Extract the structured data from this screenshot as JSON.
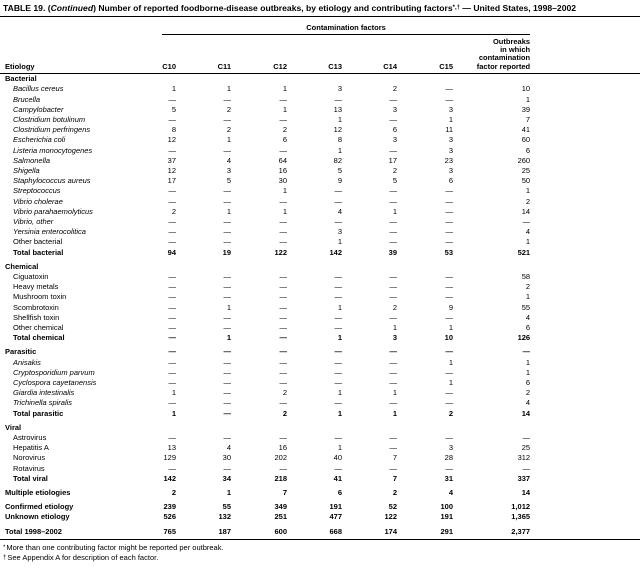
{
  "title": {
    "part1": "TABLE 19. (",
    "continued": "Continued",
    "part2": ") Number of reported foodborne-disease outbreaks, by etiology and contributing factors",
    "superscript": "*,†",
    "part3": " — United States, 1998–2002"
  },
  "columns": {
    "group_header": "Contamination factors",
    "etiology": "Etiology",
    "factors": [
      "C10",
      "C11",
      "C12",
      "C13",
      "C14",
      "C15"
    ],
    "outbreaks_header": "Outbreaks\nin which\ncontamination\nfactor reported"
  },
  "sections": [
    {
      "name": "Bacterial",
      "name_values": null,
      "rows": [
        {
          "label": "Bacillus cereus",
          "italic": true,
          "bold": false,
          "values": [
            "1",
            "1",
            "1",
            "3",
            "2",
            "—",
            "10"
          ]
        },
        {
          "label": "Brucella",
          "italic": true,
          "bold": false,
          "values": [
            "—",
            "—",
            "—",
            "—",
            "—",
            "—",
            "1"
          ]
        },
        {
          "label": "Campylobacter",
          "italic": true,
          "bold": false,
          "values": [
            "5",
            "2",
            "1",
            "13",
            "3",
            "3",
            "39"
          ]
        },
        {
          "label": "Clostridium botulinum",
          "italic": true,
          "bold": false,
          "values": [
            "—",
            "—",
            "—",
            "1",
            "—",
            "1",
            "7"
          ]
        },
        {
          "label": "Clostridium perfringens",
          "italic": true,
          "bold": false,
          "values": [
            "8",
            "2",
            "2",
            "12",
            "6",
            "11",
            "41"
          ]
        },
        {
          "label": "Escherichia coli",
          "italic": true,
          "bold": false,
          "values": [
            "12",
            "1",
            "6",
            "8",
            "3",
            "3",
            "60"
          ]
        },
        {
          "label": "Listeria monocytogenes",
          "italic": true,
          "bold": false,
          "values": [
            "—",
            "—",
            "—",
            "1",
            "—",
            "3",
            "6"
          ]
        },
        {
          "label": "Salmonella",
          "italic": true,
          "bold": false,
          "values": [
            "37",
            "4",
            "64",
            "82",
            "17",
            "23",
            "260"
          ]
        },
        {
          "label": "Shigella",
          "italic": true,
          "bold": false,
          "values": [
            "12",
            "3",
            "16",
            "5",
            "2",
            "3",
            "25"
          ]
        },
        {
          "label": "Staphylococcus aureus",
          "italic": true,
          "bold": false,
          "values": [
            "17",
            "5",
            "30",
            "9",
            "5",
            "6",
            "50"
          ]
        },
        {
          "label": "Streptococcus",
          "italic": true,
          "bold": false,
          "values": [
            "—",
            "—",
            "1",
            "—",
            "—",
            "—",
            "1"
          ]
        },
        {
          "label": "Vibrio cholerae",
          "italic": true,
          "bold": false,
          "values": [
            "—",
            "—",
            "—",
            "—",
            "—",
            "—",
            "2"
          ]
        },
        {
          "label": "Vibrio parahaemolyticus",
          "italic": true,
          "bold": false,
          "values": [
            "2",
            "1",
            "1",
            "4",
            "1",
            "—",
            "14"
          ]
        },
        {
          "label": "Vibrio, other",
          "italic": true,
          "bold": false,
          "values": [
            "—",
            "—",
            "—",
            "—",
            "—",
            "—",
            "—"
          ]
        },
        {
          "label": "Yersinia enterocolitica",
          "italic": true,
          "bold": false,
          "values": [
            "—",
            "—",
            "—",
            "3",
            "—",
            "—",
            "4"
          ]
        },
        {
          "label": "Other bacterial",
          "italic": false,
          "bold": false,
          "values": [
            "—",
            "—",
            "—",
            "1",
            "—",
            "—",
            "1"
          ]
        },
        {
          "label": "Total bacterial",
          "italic": false,
          "bold": true,
          "values": [
            "94",
            "19",
            "122",
            "142",
            "39",
            "53",
            "521"
          ]
        }
      ]
    },
    {
      "name": "Chemical",
      "name_values": null,
      "rows": [
        {
          "label": "Ciguatoxin",
          "italic": false,
          "bold": false,
          "values": [
            "—",
            "—",
            "—",
            "—",
            "—",
            "—",
            "58"
          ]
        },
        {
          "label": "Heavy metals",
          "italic": false,
          "bold": false,
          "values": [
            "—",
            "—",
            "—",
            "—",
            "—",
            "—",
            "2"
          ]
        },
        {
          "label": "Mushroom toxin",
          "italic": false,
          "bold": false,
          "values": [
            "—",
            "—",
            "—",
            "—",
            "—",
            "—",
            "1"
          ]
        },
        {
          "label": "Scombrotoxin",
          "italic": false,
          "bold": false,
          "values": [
            "—",
            "1",
            "—",
            "1",
            "2",
            "9",
            "55"
          ]
        },
        {
          "label": "Shellfish toxin",
          "italic": false,
          "bold": false,
          "values": [
            "—",
            "—",
            "—",
            "—",
            "—",
            "—",
            "4"
          ]
        },
        {
          "label": "Other chemical",
          "italic": false,
          "bold": false,
          "values": [
            "—",
            "—",
            "—",
            "—",
            "1",
            "1",
            "6"
          ]
        },
        {
          "label": "Total chemical",
          "italic": false,
          "bold": true,
          "values": [
            "—",
            "1",
            "—",
            "1",
            "3",
            "10",
            "126"
          ]
        }
      ]
    },
    {
      "name": "Parasitic",
      "name_values": [
        "—",
        "—",
        "—",
        "—",
        "—",
        "—",
        "—"
      ],
      "rows": [
        {
          "label": "Anisakis",
          "italic": true,
          "bold": false,
          "values": [
            "—",
            "—",
            "—",
            "—",
            "—",
            "1",
            "1"
          ]
        },
        {
          "label": "Cryptosporidium parvum",
          "italic": true,
          "bold": false,
          "values": [
            "—",
            "—",
            "—",
            "—",
            "—",
            "—",
            "1"
          ]
        },
        {
          "label": "Cyclospora cayetanensis",
          "italic": true,
          "bold": false,
          "values": [
            "—",
            "—",
            "—",
            "—",
            "—",
            "1",
            "6"
          ]
        },
        {
          "label": "Giardia intestinalis",
          "italic": true,
          "bold": false,
          "values": [
            "1",
            "—",
            "2",
            "1",
            "1",
            "—",
            "2"
          ]
        },
        {
          "label": "Trichinella spiralis",
          "italic": true,
          "bold": false,
          "values": [
            "—",
            "—",
            "—",
            "—",
            "—",
            "—",
            "4"
          ]
        },
        {
          "label": "Total parasitic",
          "italic": false,
          "bold": true,
          "values": [
            "1",
            "—",
            "2",
            "1",
            "1",
            "2",
            "14"
          ]
        }
      ]
    },
    {
      "name": "Viral",
      "name_values": null,
      "rows": [
        {
          "label": "Astrovirus",
          "italic": false,
          "bold": false,
          "values": [
            "—",
            "—",
            "—",
            "—",
            "—",
            "—",
            "—"
          ]
        },
        {
          "label": "Hepatitis A",
          "italic": false,
          "bold": false,
          "values": [
            "13",
            "4",
            "16",
            "1",
            "—",
            "3",
            "25"
          ]
        },
        {
          "label": "Norovirus",
          "italic": false,
          "bold": false,
          "values": [
            "129",
            "30",
            "202",
            "40",
            "7",
            "28",
            "312"
          ]
        },
        {
          "label": "Rotavirus",
          "italic": false,
          "bold": false,
          "values": [
            "—",
            "—",
            "—",
            "—",
            "—",
            "—",
            "—"
          ]
        },
        {
          "label": "Total viral",
          "italic": false,
          "bold": true,
          "values": [
            "142",
            "34",
            "218",
            "41",
            "7",
            "31",
            "337"
          ]
        }
      ]
    }
  ],
  "summary": [
    {
      "label": "Multiple etiologies",
      "group": "multiple",
      "values": [
        "2",
        "1",
        "7",
        "6",
        "2",
        "4",
        "14"
      ]
    },
    {
      "label": "Confirmed etiology",
      "group": "confirmed",
      "values": [
        "239",
        "55",
        "349",
        "191",
        "52",
        "100",
        "1,012"
      ]
    },
    {
      "label": "Unknown etiology",
      "group": "confirmed",
      "values": [
        "526",
        "132",
        "251",
        "477",
        "122",
        "191",
        "1,365"
      ]
    },
    {
      "label": "Total 1998–2002",
      "group": "total",
      "values": [
        "765",
        "187",
        "600",
        "668",
        "174",
        "291",
        "2,377"
      ]
    }
  ],
  "footnotes": [
    {
      "marker": "*",
      "text": "More than one contributing factor might be reported per outbreak."
    },
    {
      "marker": "†",
      "text": "See Appendix A for description of each factor."
    }
  ]
}
